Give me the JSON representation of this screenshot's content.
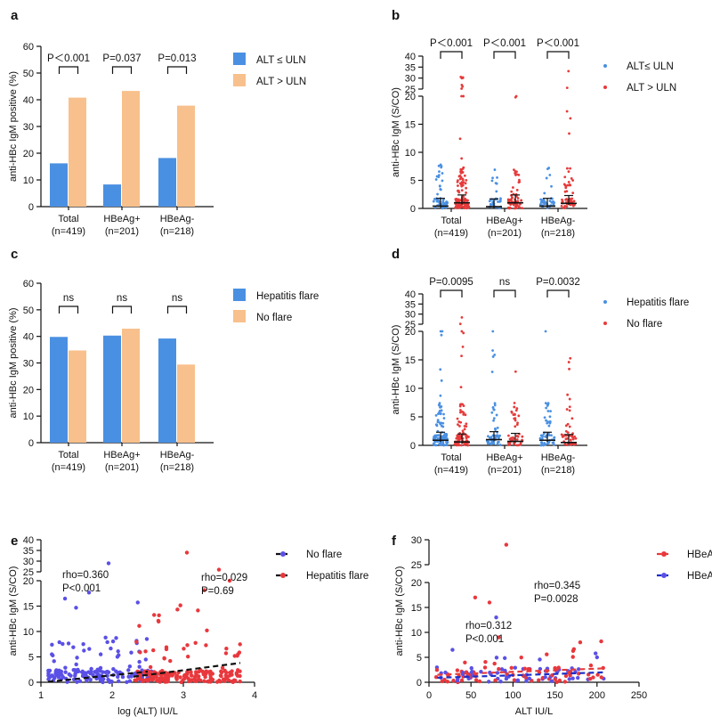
{
  "colors": {
    "blue": "#4a90e2",
    "orange": "#f8c08c",
    "red": "#e63b3b",
    "darkblue": "#1c2fc8",
    "axis": "#111111",
    "point_blue": "#5a50e6",
    "point_red": "#e8383d"
  },
  "chart_data": [
    {
      "panel": "a",
      "type": "bar",
      "ylabel": "anti-HBc IgM positive (%)",
      "ylim": [
        0,
        60
      ],
      "yticks": [
        "0",
        "10",
        "20",
        "30",
        "40",
        "50",
        "60"
      ],
      "categories": [
        "Total",
        "HBeAg+",
        "HBeAg-"
      ],
      "category_sub": [
        "(n=419)",
        "(n=201)",
        "(n=218)"
      ],
      "series": [
        {
          "name": "ALT ≤ ULN",
          "values": [
            16.2,
            8.3,
            18.2
          ]
        },
        {
          "name": "ALT > ULN",
          "values": [
            40.8,
            43.3,
            37.8
          ]
        }
      ],
      "pvalues": [
        "P＜0.001",
        "P=0.037",
        "P=0.013"
      ]
    },
    {
      "panel": "b",
      "type": "scatter",
      "ylabel": "anti-HBc IgM (S/CO)",
      "yticks_low": [
        "0",
        "5",
        "10",
        "15",
        "20"
      ],
      "yticks_high": [
        "25",
        "30",
        "35",
        "40"
      ],
      "categories": [
        "Total",
        "HBeAg+",
        "HBeAg-"
      ],
      "category_sub": [
        "(n=419)",
        "(n=201)",
        "(n=218)"
      ],
      "series": [
        {
          "name": "ALT≤ ULN",
          "medians": [
            0.4,
            0.3,
            0.4
          ]
        },
        {
          "name": "ALT > ULN",
          "medians": [
            1.0,
            1.0,
            0.9
          ]
        }
      ],
      "pvalues": [
        "P＜0.001",
        "P＜0.001",
        "P＜0.001"
      ]
    },
    {
      "panel": "c",
      "type": "bar",
      "ylabel": "anti-HBc IgM positive (%)",
      "ylim": [
        0,
        60
      ],
      "yticks": [
        "0",
        "10",
        "20",
        "30",
        "40",
        "50",
        "60"
      ],
      "categories": [
        "Total",
        "HBeAg+",
        "HBeAg-"
      ],
      "category_sub": [
        "(n=419)",
        "(n=201)",
        "(n=218)"
      ],
      "series": [
        {
          "name": "Hepatitis flare",
          "values": [
            39.8,
            40.3,
            39.2
          ]
        },
        {
          "name": "No flare",
          "values": [
            34.7,
            42.9,
            29.4
          ]
        }
      ],
      "pvalues": [
        "ns",
        "ns",
        "ns"
      ]
    },
    {
      "panel": "d",
      "type": "scatter",
      "ylabel": "anti-HBc IgM (S/CO)",
      "yticks_low": [
        "0",
        "5",
        "10",
        "15",
        "20"
      ],
      "yticks_high": [
        "25",
        "30",
        "35",
        "40"
      ],
      "categories": [
        "Total",
        "HBeAg+",
        "HBeAg-"
      ],
      "category_sub": [
        "(n=419)",
        "(n=201)",
        "(n=218)"
      ],
      "series": [
        {
          "name": "Hepatitis flare",
          "medians": [
            0.9,
            1.0,
            0.9
          ]
        },
        {
          "name": "No flare",
          "medians": [
            0.6,
            0.7,
            0.5
          ]
        }
      ],
      "pvalues": [
        "P=0.0095",
        "ns",
        "P=0.0032"
      ]
    },
    {
      "panel": "e",
      "type": "scatter",
      "xlabel": "log (ALT) IU/L",
      "ylabel": "anti-HBc IgM (S/CO)",
      "xlim": [
        1,
        4
      ],
      "xticks": [
        "1",
        "2",
        "3",
        "4"
      ],
      "yticks_low": [
        "0",
        "5",
        "10",
        "15",
        "20"
      ],
      "yticks_high": [
        "25",
        "30",
        "35",
        "40"
      ],
      "series": [
        {
          "name": "No flare",
          "rho": "rho=0.360",
          "p": "P<0.001",
          "fit": [
            [
              1.1,
              0.1
            ],
            [
              2.5,
              2.1
            ]
          ]
        },
        {
          "name": "Hepatitis flare",
          "rho": "rho=0.029",
          "p": "P=0.69",
          "fit": [
            [
              2.3,
              1.1
            ],
            [
              3.8,
              3.8
            ]
          ]
        }
      ]
    },
    {
      "panel": "f",
      "type": "scatter",
      "xlabel": "ALT IU/L",
      "ylabel": "anti-HBc IgM (S/CO)",
      "xlim": [
        0,
        250
      ],
      "xticks": [
        "0",
        "50",
        "100",
        "150",
        "200",
        "250"
      ],
      "yticks_low": [
        "0",
        "5",
        "10",
        "15",
        "20"
      ],
      "yticks_high": [
        "25",
        "30"
      ],
      "series": [
        {
          "name": "HBeAg+",
          "rho": "rho=0.345",
          "p": "P=0.0028",
          "fit": [
            [
              10,
              1.5
            ],
            [
              210,
              2.8
            ]
          ]
        },
        {
          "name": "HBeAg-",
          "rho": "rho=0.312",
          "p": "P<0.001",
          "fit": [
            [
              10,
              0.9
            ],
            [
              210,
              2.0
            ]
          ]
        }
      ]
    }
  ]
}
